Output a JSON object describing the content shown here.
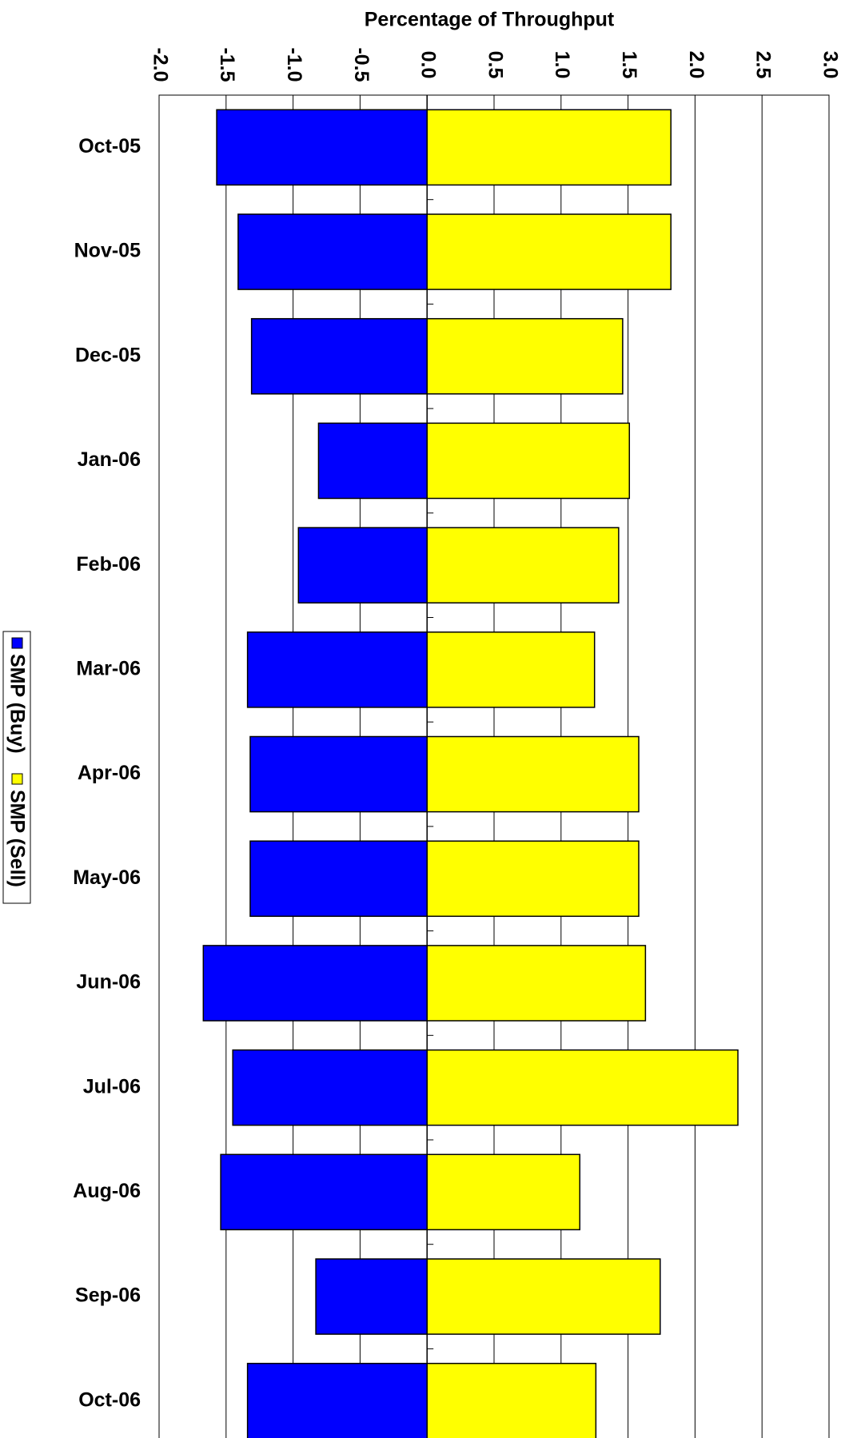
{
  "chart_data": {
    "type": "bar",
    "orientation": "horizontal",
    "title": "Percentage of Throughput",
    "categories": [
      "Oct-05",
      "Nov-05",
      "Dec-05",
      "Jan-06",
      "Feb-06",
      "Mar-06",
      "Apr-06",
      "May-06",
      "Jun-06",
      "Jul-06",
      "Aug-06",
      "Sep-06",
      "Oct-06"
    ],
    "series": [
      {
        "name": "SMP (Buy)",
        "color": "#0000ff",
        "values": [
          -1.57,
          -1.41,
          -1.31,
          -0.81,
          -0.96,
          -1.34,
          -1.32,
          -1.32,
          -1.67,
          -1.45,
          -1.54,
          -0.83,
          -1.34
        ]
      },
      {
        "name": "SMP (Sell)",
        "color": "#ffff00",
        "values": [
          1.82,
          1.82,
          1.46,
          1.51,
          1.43,
          1.25,
          1.58,
          1.58,
          1.63,
          2.32,
          1.14,
          1.74,
          1.26
        ]
      }
    ],
    "xlim": [
      -2,
      3
    ],
    "xticks": [
      {
        "value": -2,
        "label": "-2.0"
      },
      {
        "value": -1.5,
        "label": "-1.5"
      },
      {
        "value": -1,
        "label": "-1.0"
      },
      {
        "value": -0.5,
        "label": "-0.5"
      },
      {
        "value": 0,
        "label": "0.0"
      },
      {
        "value": 0.5,
        "label": "0.5"
      },
      {
        "value": 1,
        "label": "1.0"
      },
      {
        "value": 1.5,
        "label": "1.5"
      },
      {
        "value": 2,
        "label": "2.0"
      },
      {
        "value": 2.5,
        "label": "2.5"
      },
      {
        "value": 3,
        "label": "3.0"
      }
    ],
    "grid": true,
    "stacked": true,
    "legend": "left"
  }
}
